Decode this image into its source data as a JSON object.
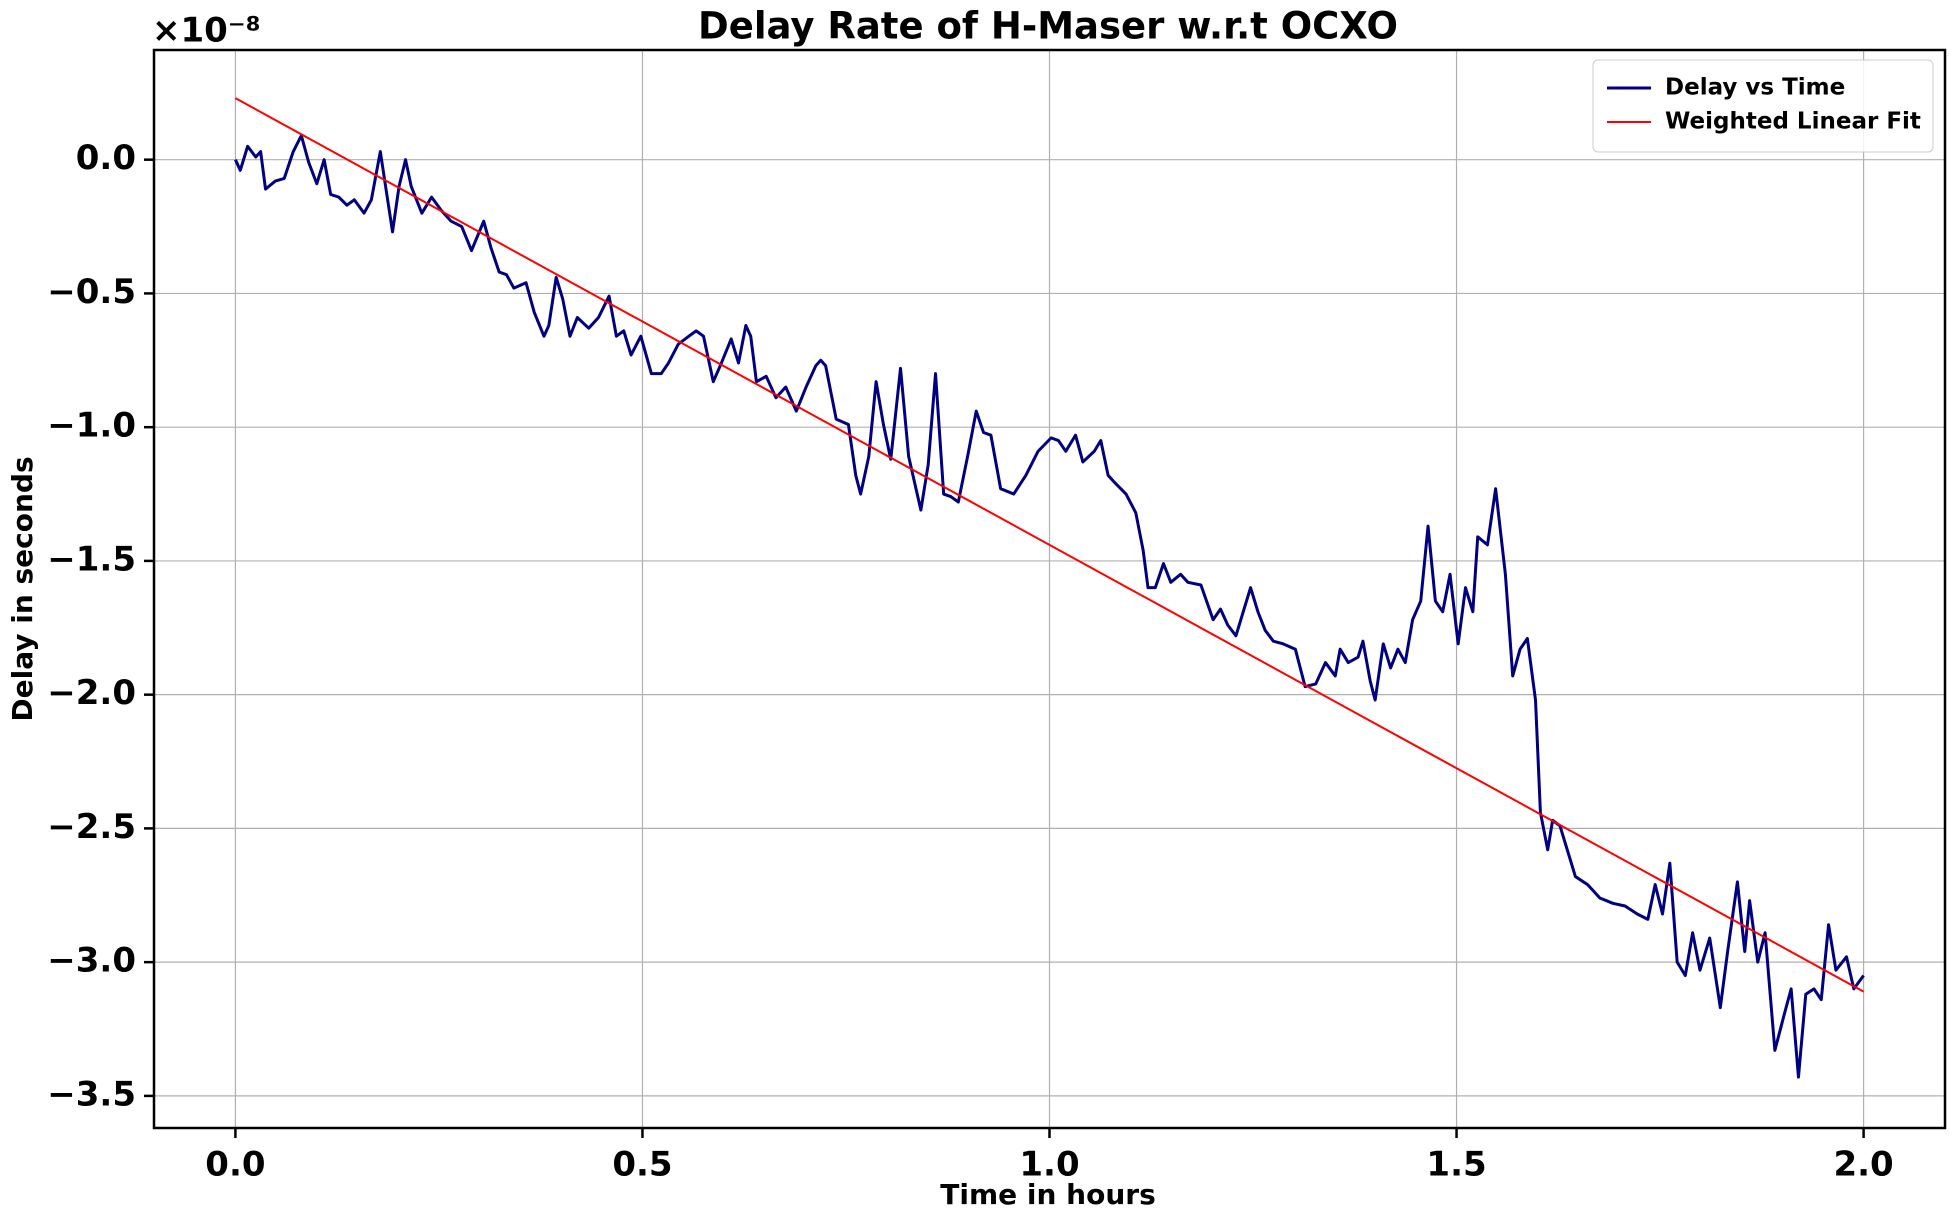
{
  "chart_data": {
    "type": "line",
    "title": "Delay Rate of H-Maser w.r.t OCXO",
    "xlabel": "Time in hours",
    "ylabel": "Delay in seconds",
    "y_offset_label": "×10⁻⁸",
    "xlim": [
      -0.1,
      2.1
    ],
    "ylim": [
      -3.62,
      0.41
    ],
    "xticks": [
      {
        "value": 0,
        "label": "0.0"
      },
      0.5,
      {
        "value": 1,
        "label": "1.0"
      },
      1.5,
      {
        "value": 2,
        "label": "2.0"
      }
    ],
    "yticks": [
      {
        "value": 0,
        "label": "0.0"
      },
      {
        "value": -0.5,
        "label": "−0.5"
      },
      {
        "value": -1,
        "label": "−1.0"
      },
      {
        "value": -1.5,
        "label": "−1.5"
      },
      {
        "value": -2,
        "label": "−2.0"
      },
      {
        "value": -2.5,
        "label": "−2.5"
      },
      {
        "value": -3,
        "label": "−3.0"
      },
      {
        "value": -3.5,
        "label": "−3.5"
      }
    ],
    "grid": true,
    "legend": "upper right",
    "series": [
      {
        "name": "Delay vs Time",
        "color": "#000080",
        "x": [
          0.0,
          0.006,
          0.015,
          0.025,
          0.031,
          0.037,
          0.049,
          0.06,
          0.071,
          0.081,
          0.09,
          0.1,
          0.109,
          0.117,
          0.127,
          0.137,
          0.146,
          0.158,
          0.167,
          0.178,
          0.187,
          0.193,
          0.201,
          0.209,
          0.216,
          0.229,
          0.241,
          0.253,
          0.265,
          0.278,
          0.29,
          0.305,
          0.314,
          0.324,
          0.333,
          0.342,
          0.357,
          0.367,
          0.379,
          0.385,
          0.394,
          0.402,
          0.411,
          0.42,
          0.434,
          0.446,
          0.459,
          0.468,
          0.477,
          0.486,
          0.498,
          0.511,
          0.523,
          0.532,
          0.544,
          0.557,
          0.566,
          0.575,
          0.587,
          0.597,
          0.609,
          0.618,
          0.627,
          0.633,
          0.64,
          0.652,
          0.664,
          0.676,
          0.689,
          0.701,
          0.713,
          0.719,
          0.725,
          0.738,
          0.753,
          0.762,
          0.768,
          0.778,
          0.787,
          0.796,
          0.805,
          0.817,
          0.827,
          0.842,
          0.851,
          0.86,
          0.87,
          0.879,
          0.888,
          0.9,
          0.91,
          0.919,
          0.928,
          0.94,
          0.956,
          0.971,
          0.986,
          1.002,
          1.011,
          1.02,
          1.032,
          1.041,
          1.055,
          1.063,
          1.072,
          1.081,
          1.094,
          1.106,
          1.115,
          1.121,
          1.13,
          1.14,
          1.149,
          1.161,
          1.17,
          1.186,
          1.201,
          1.21,
          1.219,
          1.229,
          1.238,
          1.247,
          1.256,
          1.265,
          1.275,
          1.287,
          1.302,
          1.314,
          1.327,
          1.339,
          1.351,
          1.357,
          1.367,
          1.379,
          1.385,
          1.394,
          1.4,
          1.41,
          1.419,
          1.428,
          1.437,
          1.446,
          1.456,
          1.465,
          1.474,
          1.483,
          1.492,
          1.502,
          1.511,
          1.52,
          1.526,
          1.538,
          1.548,
          1.56,
          1.569,
          1.578,
          1.587,
          1.597,
          1.603,
          1.612,
          1.618,
          1.627,
          1.636,
          1.646,
          1.661,
          1.676,
          1.692,
          1.707,
          1.722,
          1.735,
          1.744,
          1.753,
          1.762,
          1.771,
          1.781,
          1.79,
          1.799,
          1.811,
          1.824,
          1.833,
          1.845,
          1.854,
          1.86,
          1.87,
          1.879,
          1.891,
          1.903,
          1.911,
          1.92,
          1.929,
          1.939,
          1.948,
          1.957,
          1.966,
          1.979,
          1.988,
          2.0
        ],
        "values": [
          0.0,
          -0.04,
          0.05,
          0.01,
          0.03,
          -0.11,
          -0.08,
          -0.07,
          0.03,
          0.09,
          -0.01,
          -0.09,
          0.0,
          -0.13,
          -0.14,
          -0.17,
          -0.15,
          -0.2,
          -0.15,
          0.03,
          -0.15,
          -0.27,
          -0.1,
          0.0,
          -0.1,
          -0.2,
          -0.14,
          -0.19,
          -0.23,
          -0.25,
          -0.34,
          -0.23,
          -0.33,
          -0.42,
          -0.43,
          -0.48,
          -0.46,
          -0.57,
          -0.66,
          -0.62,
          -0.44,
          -0.52,
          -0.66,
          -0.59,
          -0.63,
          -0.59,
          -0.51,
          -0.66,
          -0.64,
          -0.73,
          -0.66,
          -0.8,
          -0.8,
          -0.76,
          -0.69,
          -0.66,
          -0.64,
          -0.66,
          -0.83,
          -0.76,
          -0.67,
          -0.76,
          -0.62,
          -0.66,
          -0.83,
          -0.81,
          -0.89,
          -0.85,
          -0.94,
          -0.85,
          -0.77,
          -0.75,
          -0.77,
          -0.97,
          -0.99,
          -1.18,
          -1.25,
          -1.11,
          -0.83,
          -0.99,
          -1.12,
          -0.78,
          -1.11,
          -1.31,
          -1.14,
          -0.8,
          -1.25,
          -1.26,
          -1.28,
          -1.1,
          -0.94,
          -1.02,
          -1.03,
          -1.23,
          -1.25,
          -1.18,
          -1.09,
          -1.04,
          -1.05,
          -1.09,
          -1.03,
          -1.13,
          -1.09,
          -1.05,
          -1.18,
          -1.21,
          -1.25,
          -1.32,
          -1.46,
          -1.6,
          -1.6,
          -1.51,
          -1.58,
          -1.55,
          -1.58,
          -1.59,
          -1.72,
          -1.68,
          -1.74,
          -1.78,
          -1.69,
          -1.6,
          -1.69,
          -1.76,
          -1.8,
          -1.81,
          -1.83,
          -1.97,
          -1.96,
          -1.88,
          -1.93,
          -1.83,
          -1.88,
          -1.86,
          -1.8,
          -1.95,
          -2.02,
          -1.81,
          -1.9,
          -1.83,
          -1.88,
          -1.72,
          -1.65,
          -1.37,
          -1.65,
          -1.69,
          -1.55,
          -1.81,
          -1.6,
          -1.69,
          -1.41,
          -1.44,
          -1.23,
          -1.55,
          -1.93,
          -1.83,
          -1.79,
          -2.02,
          -2.44,
          -2.58,
          -2.47,
          -2.49,
          -2.58,
          -2.68,
          -2.71,
          -2.76,
          -2.78,
          -2.79,
          -2.82,
          -2.84,
          -2.71,
          -2.82,
          -2.63,
          -3.0,
          -3.05,
          -2.89,
          -3.03,
          -2.91,
          -3.17,
          -2.96,
          -2.7,
          -2.96,
          -2.77,
          -3.0,
          -2.89,
          -3.33,
          -3.19,
          -3.1,
          -3.43,
          -3.12,
          -3.1,
          -3.14,
          -2.86,
          -3.03,
          -2.98,
          -3.1,
          -3.05
        ]
      },
      {
        "name": "Weighted Linear Fit",
        "color": "#ff0000",
        "x": [
          0,
          2
        ],
        "values": [
          0.23,
          -3.11
        ]
      }
    ]
  }
}
